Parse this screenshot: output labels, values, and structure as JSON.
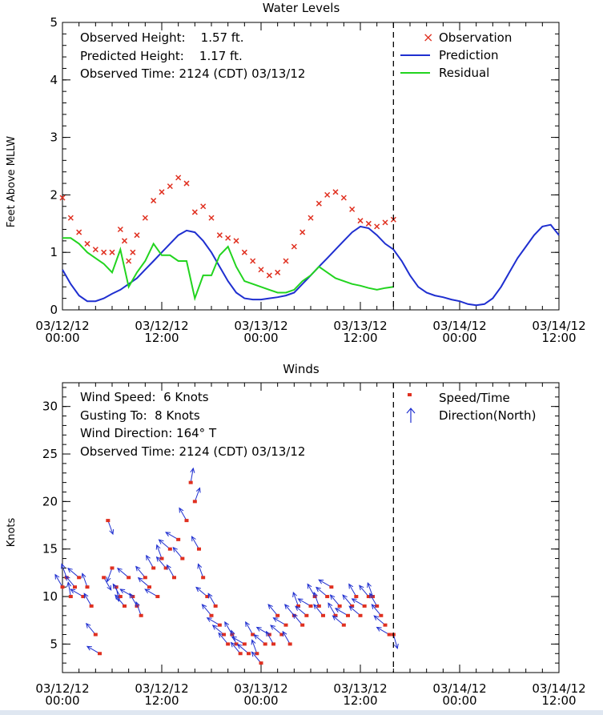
{
  "chart_data": [
    {
      "type": "line",
      "title": "Water Levels",
      "ylabel": "Feet Above MLLW",
      "xlabel": "",
      "ylim": [
        0,
        5
      ],
      "yticks": [
        "0",
        "1",
        "2",
        "3",
        "4",
        "5"
      ],
      "x_range_hours": [
        0,
        60
      ],
      "x_tick_labels": [
        {
          "date": "03/12/12",
          "time": "00:00"
        },
        {
          "date": "03/12/12",
          "time": "12:00"
        },
        {
          "date": "03/13/12",
          "time": "00:00"
        },
        {
          "date": "03/13/12",
          "time": "12:00"
        },
        {
          "date": "03/14/12",
          "time": "00:00"
        },
        {
          "date": "03/14/12",
          "time": "12:00"
        }
      ],
      "current_time_hours": 40,
      "info": [
        "Observed Height:    1.57 ft.",
        "Predicted Height:    1.17 ft.",
        "Observed Time: 2124 (CDT) 03/13/12"
      ],
      "legend": [
        {
          "marker": "×",
          "label": "Observation",
          "color": "#e03020"
        },
        {
          "marker": "line",
          "label": "Prediction",
          "color": "#1f2fd0"
        },
        {
          "marker": "line",
          "label": "Residual",
          "color": "#22d41f"
        }
      ],
      "series": [
        {
          "name": "Observation",
          "style": "marker",
          "color": "#e03020",
          "x": [
            0,
            1,
            2,
            3,
            4,
            5,
            6,
            7,
            7.5,
            8,
            8.5,
            9,
            10,
            11,
            12,
            13,
            14,
            15,
            16,
            17,
            18,
            19,
            20,
            21,
            22,
            23,
            24,
            25,
            26,
            27,
            28,
            29,
            30,
            31,
            32,
            33,
            34,
            35,
            36,
            37,
            38,
            39,
            40
          ],
          "y": [
            1.95,
            1.6,
            1.35,
            1.15,
            1.05,
            1.0,
            1.0,
            1.4,
            1.2,
            0.85,
            1.0,
            1.3,
            1.6,
            1.9,
            2.05,
            2.15,
            2.3,
            2.2,
            1.7,
            1.8,
            1.6,
            1.3,
            1.25,
            1.2,
            1.0,
            0.85,
            0.7,
            0.6,
            0.65,
            0.85,
            1.1,
            1.35,
            1.6,
            1.85,
            2.0,
            2.05,
            1.95,
            1.75,
            1.55,
            1.5,
            1.45,
            1.52,
            1.57
          ]
        },
        {
          "name": "Prediction",
          "style": "line",
          "color": "#1f2fd0",
          "x": [
            0,
            1,
            2,
            3,
            4,
            5,
            6,
            7,
            8,
            9,
            10,
            11,
            12,
            13,
            14,
            15,
            16,
            17,
            18,
            19,
            20,
            21,
            22,
            23,
            24,
            25,
            26,
            27,
            28,
            29,
            30,
            31,
            32,
            33,
            34,
            35,
            36,
            37,
            38,
            39,
            40,
            41,
            42,
            43,
            44,
            45,
            46,
            47,
            48,
            49,
            50,
            51,
            52,
            53,
            54,
            55,
            56,
            57,
            58,
            59,
            60
          ],
          "y": [
            0.7,
            0.45,
            0.25,
            0.15,
            0.15,
            0.2,
            0.28,
            0.35,
            0.45,
            0.55,
            0.7,
            0.85,
            1.0,
            1.15,
            1.3,
            1.38,
            1.35,
            1.2,
            1.0,
            0.75,
            0.5,
            0.3,
            0.2,
            0.18,
            0.18,
            0.2,
            0.22,
            0.25,
            0.3,
            0.45,
            0.6,
            0.75,
            0.9,
            1.05,
            1.2,
            1.35,
            1.45,
            1.42,
            1.3,
            1.15,
            1.05,
            0.85,
            0.6,
            0.4,
            0.3,
            0.25,
            0.22,
            0.18,
            0.15,
            0.1,
            0.08,
            0.1,
            0.2,
            0.4,
            0.65,
            0.9,
            1.1,
            1.3,
            1.45,
            1.48,
            1.3
          ]
        },
        {
          "name": "Residual",
          "style": "line",
          "color": "#22d41f",
          "x": [
            0,
            1,
            2,
            3,
            4,
            5,
            6,
            7,
            8,
            9,
            10,
            11,
            12,
            13,
            14,
            15,
            16,
            17,
            18,
            19,
            20,
            21,
            22,
            23,
            24,
            25,
            26,
            27,
            28,
            29,
            30,
            31,
            32,
            33,
            34,
            35,
            36,
            37,
            38,
            39,
            40
          ],
          "y": [
            1.25,
            1.25,
            1.15,
            1.0,
            0.9,
            0.8,
            0.65,
            1.05,
            0.4,
            0.65,
            0.85,
            1.15,
            0.95,
            0.95,
            0.85,
            0.85,
            0.2,
            0.6,
            0.6,
            0.95,
            1.1,
            0.75,
            0.5,
            0.45,
            0.4,
            0.35,
            0.3,
            0.3,
            0.35,
            0.5,
            0.6,
            0.75,
            0.65,
            0.55,
            0.5,
            0.45,
            0.42,
            0.38,
            0.35,
            0.38,
            0.4
          ]
        }
      ]
    },
    {
      "type": "scatter",
      "title": "Winds",
      "ylabel": "Knots",
      "xlabel": "",
      "ylim": [
        2,
        32.5
      ],
      "yticks": [
        "5",
        "10",
        "15",
        "20",
        "25",
        "30"
      ],
      "x_range_hours": [
        0,
        60
      ],
      "x_tick_labels": [
        {
          "date": "03/12/12",
          "time": "00:00"
        },
        {
          "date": "03/12/12",
          "time": "12:00"
        },
        {
          "date": "03/13/12",
          "time": "00:00"
        },
        {
          "date": "03/13/12",
          "time": "12:00"
        },
        {
          "date": "03/14/12",
          "time": "00:00"
        },
        {
          "date": "03/14/12",
          "time": "12:00"
        }
      ],
      "current_time_hours": 40,
      "info": [
        "Wind Speed:  6 Knots",
        "Gusting To:  8 Knots",
        "Wind Direction: 164° T",
        "Observed Time: 2124 (CDT) 03/13/12"
      ],
      "legend": [
        {
          "marker": "dot",
          "label": "Speed/Time",
          "color": "#e03020"
        },
        {
          "marker": "arrow",
          "label": "Direction(North)",
          "color": "#1f2fd0"
        }
      ],
      "series": [
        {
          "name": "Speed/Time",
          "style": "dot+arrow",
          "color": "#e03020",
          "arrow_color": "#1f2fd0",
          "x": [
            0,
            0.5,
            1,
            1.5,
            2,
            2.5,
            3,
            3.5,
            4,
            4.5,
            5,
            5.5,
            6,
            6.5,
            7,
            7.5,
            8,
            8.5,
            9,
            9.5,
            10,
            10.5,
            11,
            11.5,
            12,
            12.5,
            13,
            13.5,
            14,
            14.5,
            15,
            15.5,
            16,
            16.5,
            17,
            17.5,
            18,
            18.5,
            19,
            19.5,
            20,
            20.5,
            21,
            21.5,
            22,
            22.5,
            23,
            23.5,
            24,
            24.5,
            25,
            25.5,
            26,
            26.5,
            27,
            27.5,
            28,
            28.5,
            29,
            29.5,
            30,
            30.5,
            31,
            31.5,
            32,
            32.5,
            33,
            33.5,
            34,
            34.5,
            35,
            35.5,
            36,
            36.5,
            37,
            37.5,
            38,
            38.5,
            39,
            39.5,
            40
          ],
          "y": [
            11,
            12,
            10,
            11,
            12,
            10,
            11,
            9,
            6,
            4,
            12,
            18,
            13,
            11,
            10,
            9,
            12,
            10,
            9,
            8,
            12,
            11,
            13,
            10,
            14,
            13,
            15,
            12,
            16,
            14,
            18,
            22,
            20,
            15,
            12,
            10,
            8,
            9,
            7,
            6,
            5,
            6,
            5,
            4,
            5,
            4,
            6,
            4,
            3,
            5,
            6,
            5,
            8,
            6,
            7,
            5,
            8,
            9,
            7,
            8,
            9,
            10,
            9,
            8,
            10,
            11,
            8,
            9,
            7,
            8,
            9,
            10,
            8,
            9,
            10,
            10,
            9,
            8,
            7,
            6,
            6
          ],
          "dir_deg": [
            330,
            340,
            350,
            320,
            310,
            300,
            340,
            330,
            320,
            300,
            150,
            160,
            200,
            170,
            330,
            320,
            310,
            300,
            330,
            340,
            320,
            310,
            330,
            300,
            340,
            320,
            310,
            330,
            300,
            320,
            330,
            10,
            20,
            330,
            340,
            310,
            320,
            330,
            300,
            310,
            320,
            330,
            340,
            320,
            300,
            310,
            330,
            340,
            320,
            310,
            300,
            330,
            320,
            310,
            300,
            330,
            320,
            340,
            320,
            310,
            300,
            330,
            340,
            320,
            310,
            300,
            330,
            320,
            310,
            300,
            320,
            330,
            310,
            300,
            320,
            340,
            330,
            320,
            310,
            300,
            164
          ]
        }
      ]
    }
  ]
}
